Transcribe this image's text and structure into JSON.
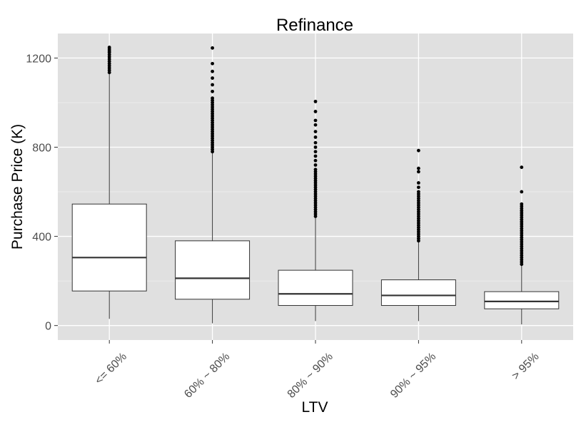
{
  "chart_data": {
    "type": "boxplot",
    "title": "Refinance",
    "xlabel": "LTV",
    "ylabel": "Purchase Price (K)",
    "ylim": [
      -65,
      1310
    ],
    "yticks": [
      0,
      400,
      800,
      1200
    ],
    "grid": true,
    "colors": {
      "panel": "#e0e0e0",
      "grid_major": "#ffffff",
      "grid_minor": "#ececec",
      "box_fill": "#ffffff",
      "box_line": "#333333",
      "outlier": "#000000",
      "tick_text": "#4d4d4d"
    },
    "categories": [
      "<= 60%",
      "60% ~ 80%",
      "80% ~ 90%",
      "90% ~ 95%",
      "> 95%"
    ],
    "boxes": [
      {
        "whisker_low": 30,
        "q1": 155,
        "median": 305,
        "q3": 545,
        "whisker_high": 1130,
        "outliers": [
          1135,
          1145,
          1155,
          1165,
          1175,
          1185,
          1195,
          1205,
          1215,
          1225,
          1232,
          1240,
          1248
        ]
      },
      {
        "whisker_low": 10,
        "q1": 118,
        "median": 212,
        "q3": 380,
        "whisker_high": 778,
        "outliers": [
          780,
          790,
          800,
          810,
          820,
          830,
          840,
          850,
          860,
          870,
          880,
          890,
          900,
          910,
          920,
          930,
          940,
          950,
          960,
          970,
          980,
          990,
          1000,
          1010,
          1020,
          1050,
          1080,
          1110,
          1140,
          1175,
          1245
        ]
      },
      {
        "whisker_low": 20,
        "q1": 90,
        "median": 142,
        "q3": 248,
        "whisker_high": 485,
        "outliers": [
          490,
          500,
          510,
          520,
          530,
          540,
          550,
          560,
          570,
          580,
          590,
          600,
          610,
          620,
          630,
          640,
          650,
          660,
          670,
          680,
          690,
          700,
          720,
          740,
          760,
          780,
          800,
          820,
          845,
          870,
          900,
          920,
          960,
          1005
        ]
      },
      {
        "whisker_low": 20,
        "q1": 90,
        "median": 135,
        "q3": 205,
        "whisker_high": 375,
        "outliers": [
          380,
          390,
          400,
          410,
          420,
          430,
          440,
          450,
          460,
          470,
          480,
          490,
          500,
          510,
          520,
          530,
          540,
          550,
          560,
          570,
          580,
          590,
          600,
          620,
          640,
          690,
          705,
          785
        ]
      },
      {
        "whisker_low": 5,
        "q1": 75,
        "median": 108,
        "q3": 152,
        "whisker_high": 270,
        "outliers": [
          275,
          285,
          295,
          305,
          315,
          325,
          335,
          345,
          355,
          365,
          375,
          385,
          395,
          405,
          415,
          425,
          435,
          445,
          455,
          465,
          475,
          485,
          495,
          505,
          515,
          525,
          535,
          545,
          600,
          710
        ]
      }
    ]
  }
}
